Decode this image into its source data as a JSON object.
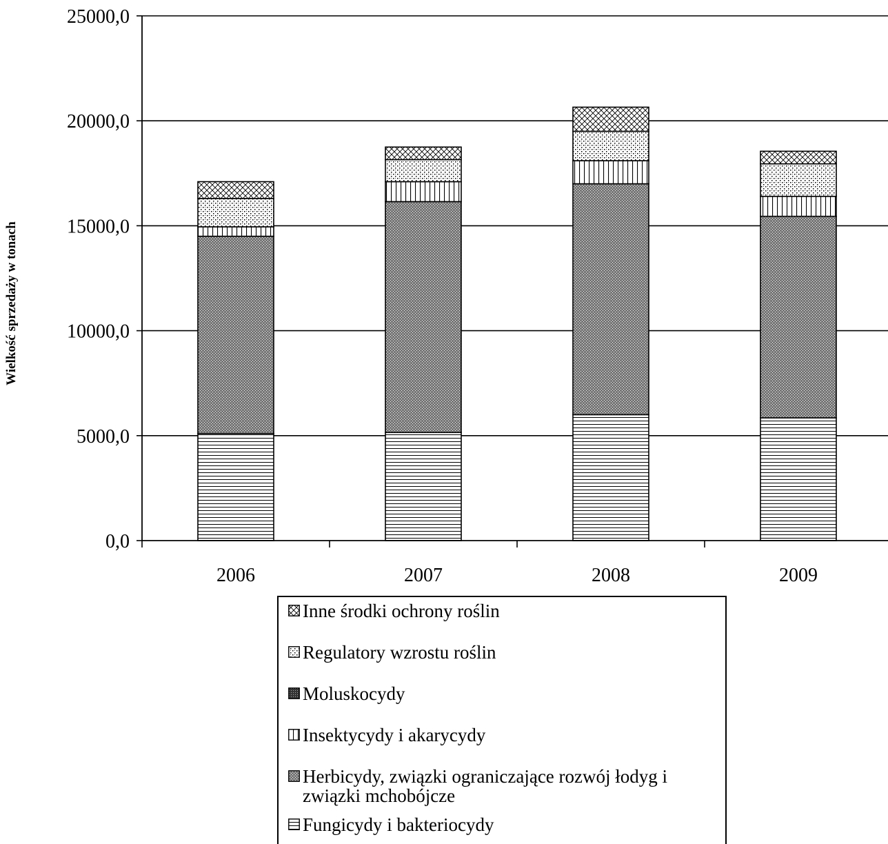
{
  "chart_data": {
    "type": "bar",
    "stacked": true,
    "title": "",
    "xlabel": "",
    "ylabel": "Wielkość sprzedaży w tonach",
    "ylim": [
      0,
      25000
    ],
    "yticks": [
      "0,0",
      "5000,0",
      "10000,0",
      "15000,0",
      "20000,0",
      "25000,0"
    ],
    "grid": true,
    "legend_position": "bottom",
    "categories": [
      "2006",
      "2007",
      "2008",
      "2009"
    ],
    "series": [
      {
        "name": "Fungicydy i bakteriocydy",
        "pattern": "horizontal-lines",
        "values": [
          5100,
          5150,
          6000,
          5850
        ]
      },
      {
        "name": "Herbicydy,  związki ograniczające rozwój łodyg i związki mchobójcze",
        "pattern": "dense-dots",
        "values": [
          9400,
          11000,
          11000,
          9600
        ]
      },
      {
        "name": "Insektycydy i akarycydy",
        "pattern": "vertical-lines",
        "values": [
          450,
          950,
          1100,
          950
        ]
      },
      {
        "name": "Moluskocydy",
        "pattern": "dark-dots",
        "values": [
          0,
          0,
          0,
          0
        ]
      },
      {
        "name": "Regulatory wzrostu roślin",
        "pattern": "sparse-dots",
        "values": [
          1350,
          1050,
          1400,
          1550
        ]
      },
      {
        "name": "Inne środki ochrony roślin",
        "pattern": "crosshatch",
        "values": [
          800,
          600,
          1150,
          600
        ]
      }
    ]
  }
}
